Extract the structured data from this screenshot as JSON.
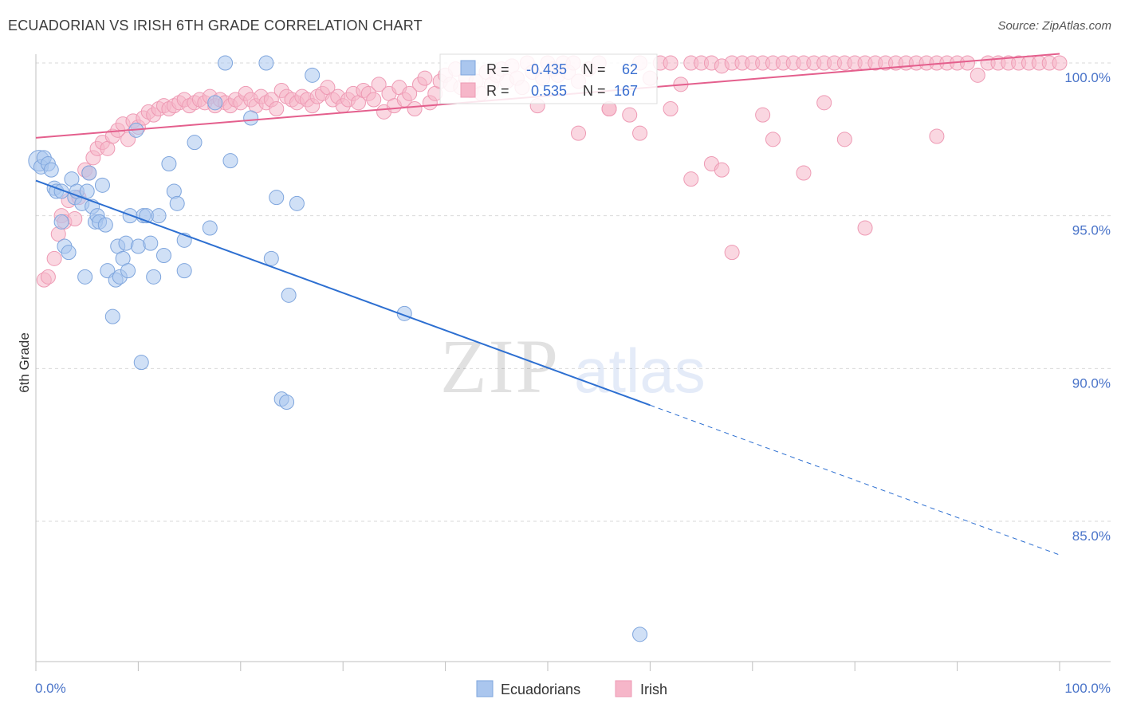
{
  "title": "ECUADORIAN VS IRISH 6TH GRADE CORRELATION CHART",
  "source": "Source: ZipAtlas.com",
  "watermark": {
    "zip": "ZIP",
    "atlas": "atlas"
  },
  "colors": {
    "blue_fill": "#aac6ee",
    "blue_stroke": "#7ea5dd",
    "blue_line": "#2d6fd1",
    "pink_fill": "#f6b6c9",
    "pink_stroke": "#ee9ab4",
    "pink_line": "#e45f8d",
    "tick_text": "#4a74c9",
    "grid": "#d9d9d9"
  },
  "stats": [
    {
      "r_label": "R =",
      "r_value": "-0.435",
      "n_label": "N =",
      "n_value": "62"
    },
    {
      "r_label": "R =",
      "r_value": "0.535",
      "n_label": "N =",
      "n_value": "167"
    }
  ],
  "chart_data": {
    "type": "scatter",
    "title": "ECUADORIAN VS IRISH 6TH GRADE CORRELATION CHART",
    "xlabel": "",
    "ylabel": "6th Grade",
    "xlim": [
      0,
      100
    ],
    "ylim": [
      80.5,
      100.6
    ],
    "x_tick_labels": [
      "0.0%",
      "100.0%"
    ],
    "y_ticks": [
      85,
      90,
      95,
      100
    ],
    "y_tick_labels": [
      "85.0%",
      "90.0%",
      "95.0%",
      "100.0%"
    ],
    "grid": true,
    "legend_position": "bottom",
    "series": [
      {
        "name": "Ecuadorians",
        "color": "#aac6ee",
        "trend": {
          "x_start": 0,
          "y_start": 96.15,
          "x_solid_end": 60,
          "x_end": 100,
          "y_end": 83.9
        },
        "points": [
          [
            0.3,
            96.8
          ],
          [
            0.5,
            96.6
          ],
          [
            0.8,
            96.9
          ],
          [
            1.2,
            96.7
          ],
          [
            1.5,
            96.5
          ],
          [
            1.8,
            95.9
          ],
          [
            2,
            95.8
          ],
          [
            2.5,
            95.8
          ],
          [
            2.5,
            94.8
          ],
          [
            2.8,
            94.0
          ],
          [
            3.2,
            93.8
          ],
          [
            3.5,
            96.2
          ],
          [
            3.8,
            95.6
          ],
          [
            4,
            95.8
          ],
          [
            4.5,
            95.4
          ],
          [
            4.8,
            93.0
          ],
          [
            5,
            95.8
          ],
          [
            5.2,
            96.4
          ],
          [
            5.5,
            95.3
          ],
          [
            5.8,
            94.8
          ],
          [
            6,
            95.0
          ],
          [
            6.2,
            94.8
          ],
          [
            6.5,
            96.0
          ],
          [
            6.8,
            94.7
          ],
          [
            7,
            93.2
          ],
          [
            7.5,
            91.7
          ],
          [
            7.8,
            92.9
          ],
          [
            8,
            94.0
          ],
          [
            8.2,
            93.0
          ],
          [
            8.5,
            93.6
          ],
          [
            8.8,
            94.1
          ],
          [
            9,
            93.2
          ],
          [
            9.2,
            95.0
          ],
          [
            9.8,
            97.8
          ],
          [
            10,
            94.0
          ],
          [
            10.3,
            90.2
          ],
          [
            10.5,
            95.0
          ],
          [
            10.8,
            95.0
          ],
          [
            11.2,
            94.1
          ],
          [
            11.5,
            93.0
          ],
          [
            12,
            95.0
          ],
          [
            12.5,
            93.7
          ],
          [
            13,
            96.7
          ],
          [
            13.5,
            95.8
          ],
          [
            13.8,
            95.4
          ],
          [
            14.5,
            94.2
          ],
          [
            14.5,
            93.2
          ],
          [
            15.5,
            97.4
          ],
          [
            17,
            94.6
          ],
          [
            17.5,
            98.7
          ],
          [
            18.5,
            100.0
          ],
          [
            19,
            96.8
          ],
          [
            21,
            98.2
          ],
          [
            22.5,
            100.0
          ],
          [
            23,
            93.6
          ],
          [
            23.5,
            95.6
          ],
          [
            24,
            89.0
          ],
          [
            24.5,
            88.9
          ],
          [
            24.7,
            92.4
          ],
          [
            25.5,
            95.4
          ],
          [
            27,
            99.6
          ],
          [
            36,
            91.8
          ],
          [
            59,
            81.3
          ]
        ]
      },
      {
        "name": "Irish",
        "color": "#f6b6c9",
        "trend": {
          "x_start": 0,
          "y_start": 97.55,
          "x_end": 100,
          "y_end": 100.3
        },
        "points": [
          [
            0.8,
            92.9
          ],
          [
            1.2,
            93.0
          ],
          [
            1.8,
            93.6
          ],
          [
            2.2,
            94.4
          ],
          [
            2.5,
            95.0
          ],
          [
            2.8,
            94.8
          ],
          [
            3.2,
            95.5
          ],
          [
            3.8,
            94.9
          ],
          [
            4.2,
            95.6
          ],
          [
            4.8,
            96.5
          ],
          [
            5.2,
            96.4
          ],
          [
            5.6,
            96.9
          ],
          [
            6,
            97.2
          ],
          [
            6.5,
            97.4
          ],
          [
            7,
            97.2
          ],
          [
            7.5,
            97.6
          ],
          [
            8,
            97.8
          ],
          [
            8.5,
            98.0
          ],
          [
            9,
            97.5
          ],
          [
            9.5,
            98.1
          ],
          [
            10,
            97.9
          ],
          [
            10.5,
            98.2
          ],
          [
            11,
            98.4
          ],
          [
            11.5,
            98.3
          ],
          [
            12,
            98.5
          ],
          [
            12.5,
            98.6
          ],
          [
            13,
            98.5
          ],
          [
            13.5,
            98.6
          ],
          [
            14,
            98.7
          ],
          [
            14.5,
            98.8
          ],
          [
            15,
            98.6
          ],
          [
            15.5,
            98.7
          ],
          [
            16,
            98.8
          ],
          [
            16.5,
            98.7
          ],
          [
            17,
            98.9
          ],
          [
            17.5,
            98.6
          ],
          [
            18,
            98.8
          ],
          [
            18.5,
            98.7
          ],
          [
            19,
            98.6
          ],
          [
            19.5,
            98.8
          ],
          [
            20,
            98.7
          ],
          [
            20.5,
            99.0
          ],
          [
            21,
            98.8
          ],
          [
            21.5,
            98.6
          ],
          [
            22,
            98.9
          ],
          [
            22.5,
            98.7
          ],
          [
            23,
            98.8
          ],
          [
            23.5,
            98.5
          ],
          [
            24,
            99.1
          ],
          [
            24.5,
            98.9
          ],
          [
            25,
            98.8
          ],
          [
            25.5,
            98.7
          ],
          [
            26,
            98.9
          ],
          [
            26.5,
            98.8
          ],
          [
            27,
            98.6
          ],
          [
            27.5,
            98.9
          ],
          [
            28,
            99.0
          ],
          [
            28.5,
            99.2
          ],
          [
            29,
            98.8
          ],
          [
            29.5,
            98.9
          ],
          [
            30,
            98.6
          ],
          [
            30.5,
            98.8
          ],
          [
            31,
            99.0
          ],
          [
            31.5,
            98.7
          ],
          [
            32,
            99.1
          ],
          [
            32.5,
            99.0
          ],
          [
            33,
            98.8
          ],
          [
            33.5,
            99.3
          ],
          [
            34,
            98.4
          ],
          [
            34.5,
            99.0
          ],
          [
            35,
            98.6
          ],
          [
            35.5,
            99.2
          ],
          [
            36,
            98.8
          ],
          [
            36.5,
            99.0
          ],
          [
            37,
            98.5
          ],
          [
            37.5,
            99.3
          ],
          [
            38,
            99.5
          ],
          [
            38.5,
            98.7
          ],
          [
            39,
            99.0
          ],
          [
            39.5,
            99.4
          ],
          [
            40,
            99.6
          ],
          [
            40.5,
            99.3
          ],
          [
            41,
            99.8
          ],
          [
            41.5,
            99.2
          ],
          [
            42,
            99.5
          ],
          [
            42.5,
            99.1
          ],
          [
            43,
            99.4
          ],
          [
            43.5,
            99.0
          ],
          [
            44,
            99.7
          ],
          [
            44.5,
            99.3
          ],
          [
            45,
            99.6
          ],
          [
            45.5,
            99.8
          ],
          [
            46,
            99.4
          ],
          [
            46.5,
            99.9
          ],
          [
            47,
            99.5
          ],
          [
            47.5,
            99.2
          ],
          [
            48,
            100.0
          ],
          [
            48.5,
            99.7
          ],
          [
            49,
            98.6
          ],
          [
            49.5,
            99.5
          ],
          [
            50,
            100.0
          ],
          [
            50.5,
            99.8
          ],
          [
            51,
            99.6
          ],
          [
            51.5,
            100.0
          ],
          [
            52,
            99.7
          ],
          [
            52.5,
            100.0
          ],
          [
            53,
            99.4
          ],
          [
            54,
            99.8
          ],
          [
            55,
            100.0
          ],
          [
            56,
            98.5
          ],
          [
            58,
            98.3
          ],
          [
            59,
            100.0
          ],
          [
            60,
            99.5
          ],
          [
            61,
            100.0
          ],
          [
            62,
            100.0
          ],
          [
            63,
            99.3
          ],
          [
            64,
            100.0
          ],
          [
            65,
            100.0
          ],
          [
            66,
            100.0
          ],
          [
            67,
            99.9
          ],
          [
            68,
            100.0
          ],
          [
            69,
            100.0
          ],
          [
            70,
            100.0
          ],
          [
            71,
            100.0
          ],
          [
            72,
            100.0
          ],
          [
            73,
            100.0
          ],
          [
            74,
            100.0
          ],
          [
            75,
            100.0
          ],
          [
            76,
            100.0
          ],
          [
            77,
            100.0
          ],
          [
            78,
            100.0
          ],
          [
            79,
            100.0
          ],
          [
            80,
            100.0
          ],
          [
            81,
            100.0
          ],
          [
            82,
            100.0
          ],
          [
            83,
            100.0
          ],
          [
            84,
            100.0
          ],
          [
            85,
            100.0
          ],
          [
            86,
            100.0
          ],
          [
            87,
            100.0
          ],
          [
            88,
            100.0
          ],
          [
            89,
            100.0
          ],
          [
            90,
            100.0
          ],
          [
            91,
            100.0
          ],
          [
            92,
            99.6
          ],
          [
            93,
            100.0
          ],
          [
            94,
            100.0
          ],
          [
            95,
            100.0
          ],
          [
            96,
            100.0
          ],
          [
            97,
            100.0
          ],
          [
            98,
            100.0
          ],
          [
            99,
            100.0
          ],
          [
            100,
            100.0
          ],
          [
            53,
            97.7
          ],
          [
            56,
            98.5
          ],
          [
            59,
            97.7
          ],
          [
            62,
            98.5
          ],
          [
            64,
            96.2
          ],
          [
            66,
            96.7
          ],
          [
            67,
            96.5
          ],
          [
            68,
            93.8
          ],
          [
            71,
            98.3
          ],
          [
            72,
            97.5
          ],
          [
            75,
            96.4
          ],
          [
            77,
            98.7
          ],
          [
            79,
            97.5
          ],
          [
            81,
            94.6
          ],
          [
            88,
            97.6
          ]
        ]
      }
    ]
  },
  "legend": [
    {
      "label": "Ecuadorians",
      "color": "#aac6ee",
      "stroke": "#7ea5dd"
    },
    {
      "label": "Irish",
      "color": "#f6b6c9",
      "stroke": "#ee9ab4"
    }
  ]
}
